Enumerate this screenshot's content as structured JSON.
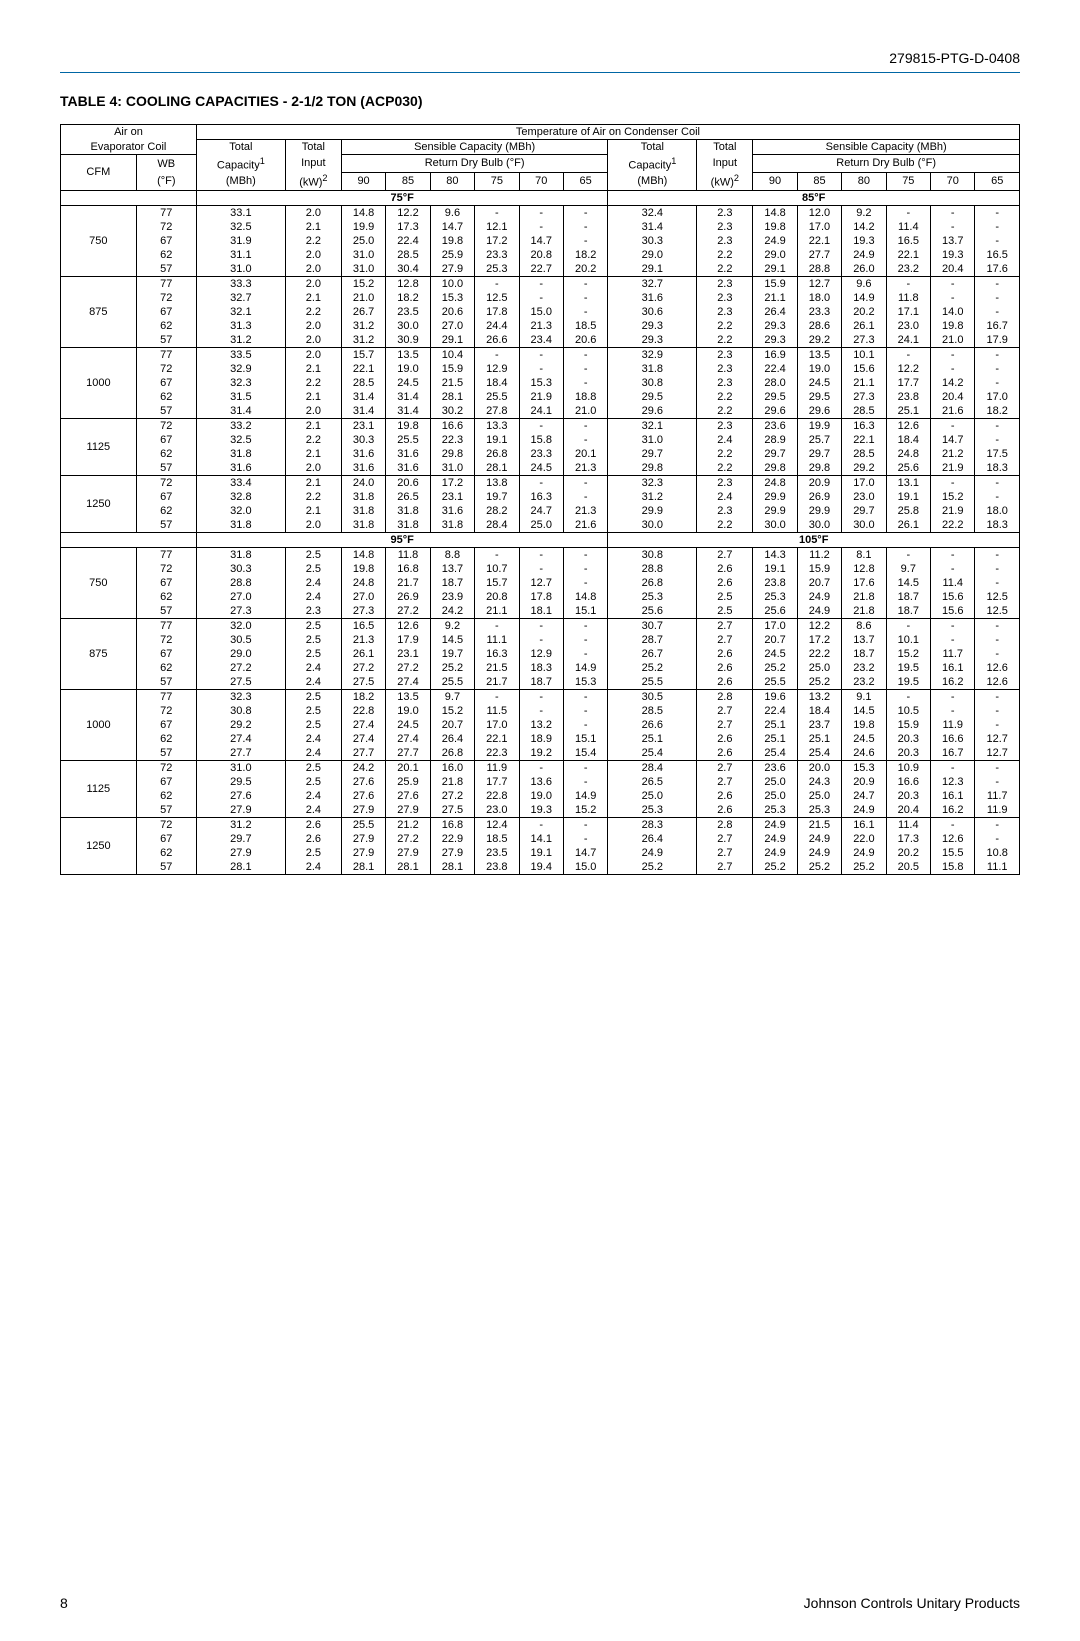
{
  "doc_id": "279815-PTG-D-0408",
  "table_title": "TABLE 4: COOLING CAPACITIES - 2-1/2 TON (ACP030)",
  "headers": {
    "air_on": "Air on\nEvaporator Coil",
    "cfm": "CFM",
    "wb": "WB\n(°F)",
    "temp_air_cond": "Temperature of Air on Condenser Coil",
    "tot_cap": "Total\nCapacity",
    "tot_cap_sup": "1",
    "tot_cap_unit": "(MBh)",
    "tot_in": "Total\nInput",
    "tot_in_sup": "2",
    "tot_in_unit": "(kW)",
    "sens": "Sensible Capacity (MBh)",
    "ret_db": "Return Dry Bulb (°F)",
    "db_cols": [
      "90",
      "85",
      "80",
      "75",
      "70",
      "65"
    ]
  },
  "temp_bands_1": {
    "left": "75°F",
    "right": "85°F"
  },
  "temp_bands_2": {
    "left": "95°F",
    "right": "105°F"
  },
  "blocks": [
    {
      "cfm": "750",
      "band": 1,
      "rows": [
        {
          "wb": "77",
          "v": [
            "33.1",
            "2.0",
            "14.8",
            "12.2",
            "9.6",
            "-",
            "-",
            "-",
            "32.4",
            "2.3",
            "14.8",
            "12.0",
            "9.2",
            "-",
            "-",
            "-"
          ]
        },
        {
          "wb": "72",
          "v": [
            "32.5",
            "2.1",
            "19.9",
            "17.3",
            "14.7",
            "12.1",
            "-",
            "-",
            "31.4",
            "2.3",
            "19.8",
            "17.0",
            "14.2",
            "11.4",
            "-",
            "-"
          ]
        },
        {
          "wb": "67",
          "v": [
            "31.9",
            "2.2",
            "25.0",
            "22.4",
            "19.8",
            "17.2",
            "14.7",
            "-",
            "30.3",
            "2.3",
            "24.9",
            "22.1",
            "19.3",
            "16.5",
            "13.7",
            "-"
          ]
        },
        {
          "wb": "62",
          "v": [
            "31.1",
            "2.0",
            "31.0",
            "28.5",
            "25.9",
            "23.3",
            "20.8",
            "18.2",
            "29.0",
            "2.2",
            "29.0",
            "27.7",
            "24.9",
            "22.1",
            "19.3",
            "16.5"
          ]
        },
        {
          "wb": "57",
          "v": [
            "31.0",
            "2.0",
            "31.0",
            "30.4",
            "27.9",
            "25.3",
            "22.7",
            "20.2",
            "29.1",
            "2.2",
            "29.1",
            "28.8",
            "26.0",
            "23.2",
            "20.4",
            "17.6"
          ]
        }
      ]
    },
    {
      "cfm": "875",
      "band": 1,
      "rows": [
        {
          "wb": "77",
          "v": [
            "33.3",
            "2.0",
            "15.2",
            "12.8",
            "10.0",
            "-",
            "-",
            "-",
            "32.7",
            "2.3",
            "15.9",
            "12.7",
            "9.6",
            "-",
            "-",
            "-"
          ]
        },
        {
          "wb": "72",
          "v": [
            "32.7",
            "2.1",
            "21.0",
            "18.2",
            "15.3",
            "12.5",
            "-",
            "-",
            "31.6",
            "2.3",
            "21.1",
            "18.0",
            "14.9",
            "11.8",
            "-",
            "-"
          ]
        },
        {
          "wb": "67",
          "v": [
            "32.1",
            "2.2",
            "26.7",
            "23.5",
            "20.6",
            "17.8",
            "15.0",
            "-",
            "30.6",
            "2.3",
            "26.4",
            "23.3",
            "20.2",
            "17.1",
            "14.0",
            "-"
          ]
        },
        {
          "wb": "62",
          "v": [
            "31.3",
            "2.0",
            "31.2",
            "30.0",
            "27.0",
            "24.4",
            "21.3",
            "18.5",
            "29.3",
            "2.2",
            "29.3",
            "28.6",
            "26.1",
            "23.0",
            "19.8",
            "16.7"
          ]
        },
        {
          "wb": "57",
          "v": [
            "31.2",
            "2.0",
            "31.2",
            "30.9",
            "29.1",
            "26.6",
            "23.4",
            "20.6",
            "29.3",
            "2.2",
            "29.3",
            "29.2",
            "27.3",
            "24.1",
            "21.0",
            "17.9"
          ]
        }
      ]
    },
    {
      "cfm": "1000",
      "band": 1,
      "rows": [
        {
          "wb": "77",
          "v": [
            "33.5",
            "2.0",
            "15.7",
            "13.5",
            "10.4",
            "-",
            "-",
            "-",
            "32.9",
            "2.3",
            "16.9",
            "13.5",
            "10.1",
            "-",
            "-",
            "-"
          ]
        },
        {
          "wb": "72",
          "v": [
            "32.9",
            "2.1",
            "22.1",
            "19.0",
            "15.9",
            "12.9",
            "-",
            "-",
            "31.8",
            "2.3",
            "22.4",
            "19.0",
            "15.6",
            "12.2",
            "-",
            "-"
          ]
        },
        {
          "wb": "67",
          "v": [
            "32.3",
            "2.2",
            "28.5",
            "24.5",
            "21.5",
            "18.4",
            "15.3",
            "-",
            "30.8",
            "2.3",
            "28.0",
            "24.5",
            "21.1",
            "17.7",
            "14.2",
            "-"
          ]
        },
        {
          "wb": "62",
          "v": [
            "31.5",
            "2.1",
            "31.4",
            "31.4",
            "28.1",
            "25.5",
            "21.9",
            "18.8",
            "29.5",
            "2.2",
            "29.5",
            "29.5",
            "27.3",
            "23.8",
            "20.4",
            "17.0"
          ]
        },
        {
          "wb": "57",
          "v": [
            "31.4",
            "2.0",
            "31.4",
            "31.4",
            "30.2",
            "27.8",
            "24.1",
            "21.0",
            "29.6",
            "2.2",
            "29.6",
            "29.6",
            "28.5",
            "25.1",
            "21.6",
            "18.2"
          ]
        }
      ]
    },
    {
      "cfm": "1125",
      "band": 1,
      "rows": [
        {
          "wb": "72",
          "v": [
            "33.2",
            "2.1",
            "23.1",
            "19.8",
            "16.6",
            "13.3",
            "-",
            "-",
            "32.1",
            "2.3",
            "23.6",
            "19.9",
            "16.3",
            "12.6",
            "-",
            "-"
          ]
        },
        {
          "wb": "67",
          "v": [
            "32.5",
            "2.2",
            "30.3",
            "25.5",
            "22.3",
            "19.1",
            "15.8",
            "-",
            "31.0",
            "2.4",
            "28.9",
            "25.7",
            "22.1",
            "18.4",
            "14.7",
            "-"
          ]
        },
        {
          "wb": "62",
          "v": [
            "31.8",
            "2.1",
            "31.6",
            "31.6",
            "29.8",
            "26.8",
            "23.3",
            "20.1",
            "29.7",
            "2.2",
            "29.7",
            "29.7",
            "28.5",
            "24.8",
            "21.2",
            "17.5"
          ]
        },
        {
          "wb": "57",
          "v": [
            "31.6",
            "2.0",
            "31.6",
            "31.6",
            "31.0",
            "28.1",
            "24.5",
            "21.3",
            "29.8",
            "2.2",
            "29.8",
            "29.8",
            "29.2",
            "25.6",
            "21.9",
            "18.3"
          ]
        }
      ]
    },
    {
      "cfm": "1250",
      "band": 1,
      "rows": [
        {
          "wb": "72",
          "v": [
            "33.4",
            "2.1",
            "24.0",
            "20.6",
            "17.2",
            "13.8",
            "-",
            "-",
            "32.3",
            "2.3",
            "24.8",
            "20.9",
            "17.0",
            "13.1",
            "-",
            "-"
          ]
        },
        {
          "wb": "67",
          "v": [
            "32.8",
            "2.2",
            "31.8",
            "26.5",
            "23.1",
            "19.7",
            "16.3",
            "-",
            "31.2",
            "2.4",
            "29.9",
            "26.9",
            "23.0",
            "19.1",
            "15.2",
            "-"
          ]
        },
        {
          "wb": "62",
          "v": [
            "32.0",
            "2.1",
            "31.8",
            "31.8",
            "31.6",
            "28.2",
            "24.7",
            "21.3",
            "29.9",
            "2.3",
            "29.9",
            "29.9",
            "29.7",
            "25.8",
            "21.9",
            "18.0"
          ]
        },
        {
          "wb": "57",
          "v": [
            "31.8",
            "2.0",
            "31.8",
            "31.8",
            "31.8",
            "28.4",
            "25.0",
            "21.6",
            "30.0",
            "2.2",
            "30.0",
            "30.0",
            "30.0",
            "26.1",
            "22.2",
            "18.3"
          ]
        }
      ]
    },
    {
      "cfm": "750",
      "band": 2,
      "rows": [
        {
          "wb": "77",
          "v": [
            "31.8",
            "2.5",
            "14.8",
            "11.8",
            "8.8",
            "-",
            "-",
            "-",
            "30.8",
            "2.7",
            "14.3",
            "11.2",
            "8.1",
            "-",
            "-",
            "-"
          ]
        },
        {
          "wb": "72",
          "v": [
            "30.3",
            "2.5",
            "19.8",
            "16.8",
            "13.7",
            "10.7",
            "-",
            "-",
            "28.8",
            "2.6",
            "19.1",
            "15.9",
            "12.8",
            "9.7",
            "-",
            "-"
          ]
        },
        {
          "wb": "67",
          "v": [
            "28.8",
            "2.4",
            "24.8",
            "21.7",
            "18.7",
            "15.7",
            "12.7",
            "-",
            "26.8",
            "2.6",
            "23.8",
            "20.7",
            "17.6",
            "14.5",
            "11.4",
            "-"
          ]
        },
        {
          "wb": "62",
          "v": [
            "27.0",
            "2.4",
            "27.0",
            "26.9",
            "23.9",
            "20.8",
            "17.8",
            "14.8",
            "25.3",
            "2.5",
            "25.3",
            "24.9",
            "21.8",
            "18.7",
            "15.6",
            "12.5"
          ]
        },
        {
          "wb": "57",
          "v": [
            "27.3",
            "2.3",
            "27.3",
            "27.2",
            "24.2",
            "21.1",
            "18.1",
            "15.1",
            "25.6",
            "2.5",
            "25.6",
            "24.9",
            "21.8",
            "18.7",
            "15.6",
            "12.5"
          ]
        }
      ]
    },
    {
      "cfm": "875",
      "band": 2,
      "rows": [
        {
          "wb": "77",
          "v": [
            "32.0",
            "2.5",
            "16.5",
            "12.6",
            "9.2",
            "-",
            "-",
            "-",
            "30.7",
            "2.7",
            "17.0",
            "12.2",
            "8.6",
            "-",
            "-",
            "-"
          ]
        },
        {
          "wb": "72",
          "v": [
            "30.5",
            "2.5",
            "21.3",
            "17.9",
            "14.5",
            "11.1",
            "-",
            "-",
            "28.7",
            "2.7",
            "20.7",
            "17.2",
            "13.7",
            "10.1",
            "-",
            "-"
          ]
        },
        {
          "wb": "67",
          "v": [
            "29.0",
            "2.5",
            "26.1",
            "23.1",
            "19.7",
            "16.3",
            "12.9",
            "-",
            "26.7",
            "2.6",
            "24.5",
            "22.2",
            "18.7",
            "15.2",
            "11.7",
            "-"
          ]
        },
        {
          "wb": "62",
          "v": [
            "27.2",
            "2.4",
            "27.2",
            "27.2",
            "25.2",
            "21.5",
            "18.3",
            "14.9",
            "25.2",
            "2.6",
            "25.2",
            "25.0",
            "23.2",
            "19.5",
            "16.1",
            "12.6"
          ]
        },
        {
          "wb": "57",
          "v": [
            "27.5",
            "2.4",
            "27.5",
            "27.4",
            "25.5",
            "21.7",
            "18.7",
            "15.3",
            "25.5",
            "2.6",
            "25.5",
            "25.2",
            "23.2",
            "19.5",
            "16.2",
            "12.6"
          ]
        }
      ]
    },
    {
      "cfm": "1000",
      "band": 2,
      "rows": [
        {
          "wb": "77",
          "v": [
            "32.3",
            "2.5",
            "18.2",
            "13.5",
            "9.7",
            "-",
            "-",
            "-",
            "30.5",
            "2.8",
            "19.6",
            "13.2",
            "9.1",
            "-",
            "-",
            "-"
          ]
        },
        {
          "wb": "72",
          "v": [
            "30.8",
            "2.5",
            "22.8",
            "19.0",
            "15.2",
            "11.5",
            "-",
            "-",
            "28.5",
            "2.7",
            "22.4",
            "18.4",
            "14.5",
            "10.5",
            "-",
            "-"
          ]
        },
        {
          "wb": "67",
          "v": [
            "29.2",
            "2.5",
            "27.4",
            "24.5",
            "20.7",
            "17.0",
            "13.2",
            "-",
            "26.6",
            "2.7",
            "25.1",
            "23.7",
            "19.8",
            "15.9",
            "11.9",
            "-"
          ]
        },
        {
          "wb": "62",
          "v": [
            "27.4",
            "2.4",
            "27.4",
            "27.4",
            "26.4",
            "22.1",
            "18.9",
            "15.1",
            "25.1",
            "2.6",
            "25.1",
            "25.1",
            "24.5",
            "20.3",
            "16.6",
            "12.7"
          ]
        },
        {
          "wb": "57",
          "v": [
            "27.7",
            "2.4",
            "27.7",
            "27.7",
            "26.8",
            "22.3",
            "19.2",
            "15.4",
            "25.4",
            "2.6",
            "25.4",
            "25.4",
            "24.6",
            "20.3",
            "16.7",
            "12.7"
          ]
        }
      ]
    },
    {
      "cfm": "1125",
      "band": 2,
      "rows": [
        {
          "wb": "72",
          "v": [
            "31.0",
            "2.5",
            "24.2",
            "20.1",
            "16.0",
            "11.9",
            "-",
            "-",
            "28.4",
            "2.7",
            "23.6",
            "20.0",
            "15.3",
            "10.9",
            "-",
            "-"
          ]
        },
        {
          "wb": "67",
          "v": [
            "29.5",
            "2.5",
            "27.6",
            "25.9",
            "21.8",
            "17.7",
            "13.6",
            "-",
            "26.5",
            "2.7",
            "25.0",
            "24.3",
            "20.9",
            "16.6",
            "12.3",
            "-"
          ]
        },
        {
          "wb": "62",
          "v": [
            "27.6",
            "2.4",
            "27.6",
            "27.6",
            "27.2",
            "22.8",
            "19.0",
            "14.9",
            "25.0",
            "2.6",
            "25.0",
            "25.0",
            "24.7",
            "20.3",
            "16.1",
            "11.7"
          ]
        },
        {
          "wb": "57",
          "v": [
            "27.9",
            "2.4",
            "27.9",
            "27.9",
            "27.5",
            "23.0",
            "19.3",
            "15.2",
            "25.3",
            "2.6",
            "25.3",
            "25.3",
            "24.9",
            "20.4",
            "16.2",
            "11.9"
          ]
        }
      ]
    },
    {
      "cfm": "1250",
      "band": 2,
      "rows": [
        {
          "wb": "72",
          "v": [
            "31.2",
            "2.6",
            "25.5",
            "21.2",
            "16.8",
            "12.4",
            "-",
            "-",
            "28.3",
            "2.8",
            "24.9",
            "21.5",
            "16.1",
            "11.4",
            "-",
            "-"
          ]
        },
        {
          "wb": "67",
          "v": [
            "29.7",
            "2.6",
            "27.9",
            "27.2",
            "22.9",
            "18.5",
            "14.1",
            "-",
            "26.4",
            "2.7",
            "24.9",
            "24.9",
            "22.0",
            "17.3",
            "12.6",
            "-"
          ]
        },
        {
          "wb": "62",
          "v": [
            "27.9",
            "2.5",
            "27.9",
            "27.9",
            "27.9",
            "23.5",
            "19.1",
            "14.7",
            "24.9",
            "2.7",
            "24.9",
            "24.9",
            "24.9",
            "20.2",
            "15.5",
            "10.8"
          ]
        },
        {
          "wb": "57",
          "v": [
            "28.1",
            "2.4",
            "28.1",
            "28.1",
            "28.1",
            "23.8",
            "19.4",
            "15.0",
            "25.2",
            "2.7",
            "25.2",
            "25.2",
            "25.2",
            "20.5",
            "15.8",
            "11.1"
          ]
        }
      ]
    }
  ],
  "footer": {
    "page": "8",
    "brand": "Johnson Controls Unitary Products"
  }
}
